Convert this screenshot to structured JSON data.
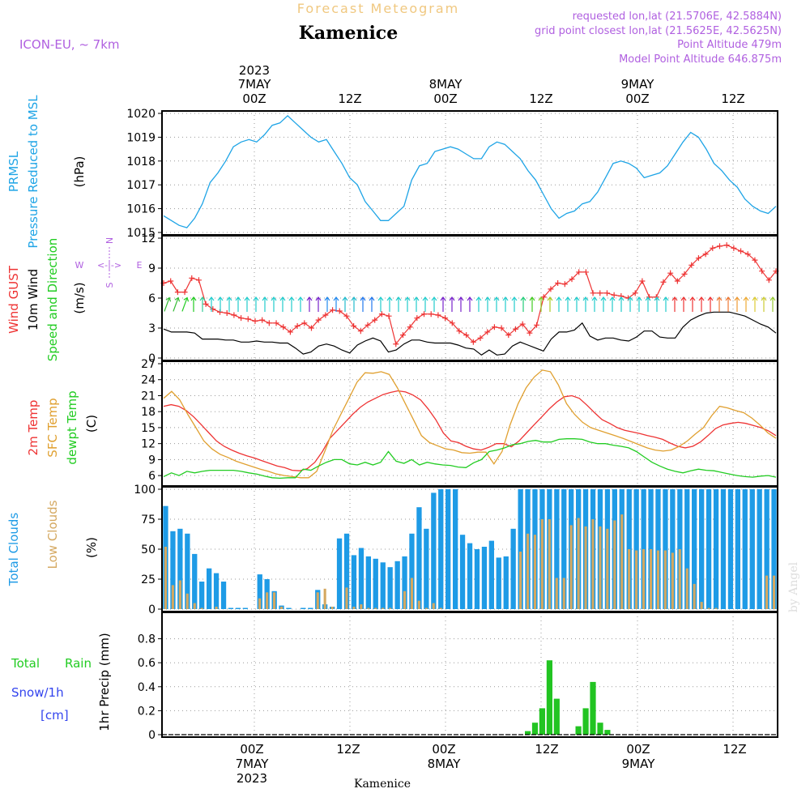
{
  "header": {
    "title": "Forecast Meteogram",
    "location": "Kamenice",
    "model": "ICON-EU, ~ 7km",
    "requested": "requested lon,lat (21.5706E, 42.5884N)",
    "gridpoint": "grid point closest lon,lat (21.5625E, 42.5625N)",
    "altitude": "Point Altitude 479m",
    "model_altitude": "Model Point Altitude 646.875m",
    "footer_location": "Kamenice",
    "credit": "by Angel"
  },
  "time_axis": {
    "top_labels": [
      {
        "time": "00Z",
        "date": "7MAY",
        "year": "2023"
      },
      {
        "time": "12Z"
      },
      {
        "time": "00Z",
        "date": "8MAY"
      },
      {
        "time": "12Z"
      },
      {
        "time": "00Z",
        "date": "9MAY"
      },
      {
        "time": "12Z"
      }
    ],
    "bottom_labels": [
      {
        "time": "00Z",
        "date": "7MAY",
        "year": "2023"
      },
      {
        "time": "12Z"
      },
      {
        "time": "00Z",
        "date": "8MAY"
      },
      {
        "time": "12Z"
      },
      {
        "time": "00Z",
        "date": "9MAY"
      },
      {
        "time": "12Z"
      }
    ]
  },
  "panel_labels": {
    "pressure": [
      "PRMSL",
      "Pressure Reduced to MSL",
      "(hPa)"
    ],
    "wind": [
      "Wind GUST",
      "10m Wind",
      "Speed and Direction",
      "(m/s)"
    ],
    "compass": {
      "n": "N",
      "s": "S",
      "e": "E",
      "w": "W",
      "arrow": "<-|->"
    },
    "temp": [
      "2m Temp",
      "SFC Temp",
      "dewpt Temp",
      "(C)"
    ],
    "clouds": [
      "Total Clouds",
      "Low Clouds",
      "(%)"
    ],
    "precip": [
      "Total",
      "Rain",
      "Snow/1h",
      "[cm]",
      "1hr Precip (mm)"
    ]
  },
  "colors": {
    "pressure": "#1ea4e6",
    "gust": "#ee3333",
    "wind": "#000000",
    "t2m": "#ee3333",
    "tsfc": "#e0a030",
    "dewpt": "#22cc22",
    "total_cloud": "#1e9be6",
    "low_cloud": "#d4a860",
    "rain": "#22c422",
    "snow": "#3344ee",
    "label_purple": "#b060e0",
    "title_orange": "#f0c880"
  },
  "chart_data": [
    {
      "type": "line",
      "name": "pressure",
      "xunit": "hours from 2023-05-06 18Z",
      "ylim": [
        1015,
        1020
      ],
      "yticks": [
        1015,
        1016,
        1017,
        1018,
        1019,
        1020
      ],
      "ylabel": "(hPa)",
      "series": [
        {
          "name": "PRMSL",
          "values": [
            1015.7,
            1015.5,
            1015.3,
            1015.2,
            1015.6,
            1016.2,
            1017.1,
            1017.5,
            1018.0,
            1018.6,
            1018.8,
            1018.9,
            1018.8,
            1019.1,
            1019.5,
            1019.6,
            1019.9,
            1019.6,
            1019.3,
            1019.0,
            1018.8,
            1018.9,
            1018.4,
            1017.9,
            1017.3,
            1017.0,
            1016.3,
            1015.9,
            1015.5,
            1015.5,
            1015.8,
            1016.1,
            1017.2,
            1017.8,
            1017.9,
            1018.4,
            1018.5,
            1018.6,
            1018.5,
            1018.3,
            1018.1,
            1018.1,
            1018.6,
            1018.8,
            1018.7,
            1018.4,
            1018.1,
            1017.6,
            1017.2,
            1016.6,
            1016.0,
            1015.6,
            1015.8,
            1015.9,
            1016.2,
            1016.3,
            1016.7,
            1017.3,
            1017.9,
            1018.0,
            1017.9,
            1017.7,
            1017.3,
            1017.4,
            1017.5,
            1017.8,
            1018.3,
            1018.8,
            1019.2,
            1019.0,
            1018.5,
            1017.9,
            1017.6,
            1017.2,
            1016.9,
            1016.4,
            1016.1,
            1015.9,
            1015.8,
            1016.1
          ]
        }
      ]
    },
    {
      "type": "line",
      "name": "wind",
      "ylim": [
        0,
        12
      ],
      "yticks": [
        0,
        3,
        6,
        9,
        12
      ],
      "ylabel": "(m/s)",
      "series": [
        {
          "name": "Wind GUST",
          "values": [
            7.5,
            7.7,
            6.6,
            6.6,
            8.0,
            7.8,
            5.4,
            4.9,
            4.6,
            4.5,
            4.3,
            4.0,
            3.9,
            3.7,
            3.8,
            3.5,
            3.5,
            3.1,
            2.6,
            3.2,
            3.5,
            3.0,
            3.8,
            4.3,
            4.8,
            4.7,
            4.2,
            3.2,
            2.7,
            3.3,
            3.8,
            4.4,
            4.2,
            1.4,
            2.3,
            3.1,
            4.0,
            4.4,
            4.4,
            4.3,
            4.0,
            3.5,
            2.7,
            2.3,
            1.6,
            2.0,
            2.6,
            3.1,
            3.0,
            2.3,
            2.9,
            3.4,
            2.5,
            3.3,
            6.1,
            6.9,
            7.5,
            7.4,
            7.9,
            8.6,
            8.6,
            6.5,
            6.5,
            6.5,
            6.3,
            6.2,
            6.0,
            6.5,
            7.7,
            6.1,
            6.1,
            7.6,
            8.5,
            7.7,
            8.4,
            9.3,
            10.0,
            10.4,
            11.0,
            11.2,
            11.3,
            11.0,
            10.7,
            10.4,
            9.8,
            8.7,
            7.8,
            8.7
          ]
        },
        {
          "name": "10m Wind",
          "values": [
            2.9,
            2.6,
            2.6,
            2.6,
            2.5,
            1.9,
            1.9,
            1.9,
            1.8,
            1.8,
            1.6,
            1.6,
            1.7,
            1.6,
            1.6,
            1.5,
            1.5,
            1.0,
            0.4,
            0.6,
            1.2,
            1.4,
            1.2,
            0.8,
            0.5,
            1.3,
            1.7,
            2.0,
            1.7,
            0.6,
            0.8,
            1.4,
            1.8,
            1.8,
            1.6,
            1.5,
            1.5,
            1.5,
            1.3,
            1.0,
            0.9,
            0.3,
            0.8,
            0.3,
            0.4,
            1.2,
            1.6,
            1.3,
            1.0,
            0.7,
            1.9,
            2.6,
            2.6,
            2.8,
            3.5,
            2.2,
            1.8,
            2.0,
            2.0,
            1.8,
            1.7,
            2.1,
            2.7,
            2.7,
            2.1,
            2.0,
            2.0,
            3.1,
            3.8,
            4.2,
            4.5,
            4.6,
            4.6,
            4.6,
            4.4,
            4.2,
            3.8,
            3.4,
            3.1,
            2.5
          ]
        }
      ],
      "arrow_colors": [
        "#33bb33",
        "#33bb33",
        "#22cc22",
        "#22cc22",
        "#33cc99",
        "#22cccc",
        "#22cccc",
        "#22cccc",
        "#22cccc",
        "#22cccc",
        "#22cccc",
        "#22cccc",
        "#22cccc",
        "#22cccc",
        "#22cccc",
        "#22cccc",
        "#7722cc",
        "#7722cc",
        "#2288ee",
        "#2288ee",
        "#22bbcc",
        "#22bbcc",
        "#2277ee",
        "#2277ee",
        "#22cccc",
        "#22cccc",
        "#22cccc",
        "#22cccc",
        "#22cccc",
        "#22cccc",
        "#22cccc",
        "#7722cc",
        "#7722cc",
        "#7722cc",
        "#7722cc",
        "#22cccc",
        "#22cccc",
        "#22cccc",
        "#22cccc",
        "#22cccc",
        "#22cc77",
        "#44cc22",
        "#88cc22",
        "#aacc22",
        "#22cccc",
        "#22cccc",
        "#22cccc",
        "#22cccc",
        "#22cccc",
        "#22cccc",
        "#22cccc",
        "#22cccc",
        "#22cccc",
        "#22cccc",
        "#22cccc",
        "#22cccc",
        "#22cccc",
        "#ee3333",
        "#ee3333",
        "#ee3333",
        "#ee3333",
        "#ee3333",
        "#ee7733",
        "#ee7733",
        "#ee9933",
        "#eeaa33",
        "#ddcc33",
        "#cccc33",
        "#99cc33"
      ]
    },
    {
      "type": "line",
      "name": "temperature",
      "ylim": [
        4.5,
        27
      ],
      "yticks": [
        6,
        9,
        12,
        15,
        18,
        21,
        24,
        27
      ],
      "ylabel": "(C)",
      "series": [
        {
          "name": "2m Temp",
          "values": [
            19.0,
            19.3,
            19.0,
            18.2,
            17.0,
            15.5,
            14.0,
            12.5,
            11.5,
            10.8,
            10.2,
            9.7,
            9.3,
            8.8,
            8.3,
            7.8,
            7.5,
            7.0,
            6.9,
            7.3,
            8.5,
            10.5,
            13.0,
            14.5,
            16.0,
            17.5,
            18.8,
            19.8,
            20.5,
            21.2,
            21.6,
            21.9,
            21.7,
            21.1,
            20.2,
            18.5,
            16.5,
            14.0,
            12.5,
            12.2,
            11.5,
            11.0,
            10.8,
            11.3,
            12.0,
            12.0,
            11.4,
            12.5,
            14.0,
            15.5,
            17.0,
            18.5,
            19.8,
            20.8,
            21.0,
            20.5,
            19.2,
            17.8,
            16.5,
            15.8,
            15.0,
            14.5,
            14.2,
            13.9,
            13.5,
            13.2,
            12.8,
            12.1,
            11.5,
            11.2,
            11.5,
            12.3,
            13.5,
            14.8,
            15.5,
            15.8,
            16.0,
            15.8,
            15.4,
            15.0,
            14.4,
            13.5
          ]
        },
        {
          "name": "SFC Temp",
          "values": [
            20.5,
            21.8,
            20.2,
            17.5,
            15.0,
            12.5,
            11.0,
            10.0,
            9.4,
            8.7,
            8.2,
            7.7,
            7.2,
            6.8,
            6.3,
            6.0,
            5.8,
            5.6,
            5.6,
            6.8,
            10.5,
            14.5,
            17.5,
            20.5,
            23.5,
            25.3,
            25.2,
            25.5,
            25.0,
            22.5,
            19.5,
            16.5,
            13.5,
            12.2,
            11.6,
            11.0,
            10.8,
            10.3,
            10.2,
            10.4,
            10.4,
            8.2,
            10.5,
            15.5,
            19.5,
            22.5,
            24.5,
            25.8,
            25.5,
            23.0,
            19.5,
            17.5,
            16.0,
            15.0,
            14.5,
            14.0,
            13.5,
            13.0,
            12.4,
            11.8,
            11.2,
            10.8,
            10.6,
            10.8,
            11.5,
            12.5,
            13.8,
            15.0,
            17.2,
            19.0,
            18.7,
            18.2,
            17.8,
            16.8,
            15.5,
            14.0,
            13.0
          ]
        },
        {
          "name": "dewpt Temp",
          "values": [
            5.8,
            6.5,
            6.0,
            6.8,
            6.5,
            6.8,
            7.0,
            7.0,
            7.0,
            7.0,
            6.8,
            6.5,
            6.3,
            5.9,
            5.6,
            5.5,
            5.6,
            5.6,
            7.2,
            7.0,
            7.8,
            8.5,
            9.0,
            9.0,
            8.2,
            8.0,
            8.5,
            8.0,
            8.5,
            10.5,
            8.7,
            8.3,
            9.0,
            8.0,
            8.5,
            8.2,
            8.0,
            7.9,
            7.6,
            7.5,
            8.4,
            9.0,
            10.5,
            10.8,
            11.2,
            11.8,
            12.0,
            12.4,
            12.6,
            12.3,
            12.3,
            12.8,
            12.9,
            12.9,
            12.8,
            12.3,
            12.0,
            12.0,
            11.7,
            11.5,
            11.2,
            10.5,
            9.5,
            8.5,
            7.8,
            7.2,
            6.8,
            6.5,
            6.9,
            7.2,
            7.0,
            6.9,
            6.6,
            6.3,
            6.0,
            5.8,
            5.7,
            5.9,
            6.0,
            5.7
          ]
        }
      ]
    },
    {
      "type": "bar",
      "name": "clouds",
      "ylim": [
        0,
        100
      ],
      "yticks": [
        0,
        25,
        50,
        75,
        100
      ],
      "ylabel": "(%)",
      "series": [
        {
          "name": "Total Clouds",
          "values": [
            86,
            65,
            67,
            63,
            46,
            23,
            34,
            30,
            23,
            1,
            1,
            1,
            0,
            29,
            25,
            15,
            3,
            1,
            0,
            1,
            1,
            16,
            4,
            2,
            59,
            63,
            45,
            51,
            44,
            42,
            39,
            35,
            40,
            44,
            63,
            85,
            67,
            97,
            100,
            100,
            100,
            62,
            55,
            50,
            52,
            57,
            43,
            44,
            67,
            100,
            100,
            100,
            100,
            100,
            100,
            100,
            100,
            100,
            100,
            100,
            100,
            100,
            100,
            100,
            100,
            100,
            100,
            100,
            100,
            100,
            100,
            100,
            100,
            100,
            100,
            100,
            100,
            100,
            100,
            100,
            100,
            100,
            100,
            100,
            100
          ]
        },
        {
          "name": "Low Clouds",
          "values": [
            52,
            20,
            24,
            13,
            5,
            1,
            0,
            2,
            0,
            0,
            0,
            0,
            0,
            9,
            14,
            14,
            2,
            0,
            0,
            0,
            0,
            14,
            17,
            2,
            0,
            18,
            2,
            4,
            1,
            1,
            1,
            1,
            0,
            15,
            26,
            7,
            1,
            5,
            1,
            0,
            0,
            0,
            0,
            0,
            0,
            0,
            0,
            0,
            0,
            48,
            63,
            62,
            75,
            75,
            26,
            26,
            70,
            76,
            69,
            75,
            69,
            67,
            74,
            79,
            50,
            49,
            50,
            50,
            49,
            49,
            47,
            50,
            34,
            21,
            6,
            1,
            1,
            0,
            0,
            0,
            0,
            0,
            0,
            28,
            28
          ]
        }
      ]
    },
    {
      "type": "bar",
      "name": "precipitation",
      "ylim": [
        0,
        1.0
      ],
      "yticks": [
        0,
        0.2,
        0.4,
        0.6,
        0.8
      ],
      "ylabel": "1hr Precip (mm)",
      "series": [
        {
          "name": "Total Rain",
          "values": [
            0,
            0,
            0,
            0,
            0,
            0,
            0,
            0,
            0,
            0,
            0,
            0,
            0,
            0,
            0,
            0,
            0,
            0,
            0,
            0,
            0,
            0,
            0,
            0,
            0,
            0,
            0,
            0,
            0,
            0,
            0,
            0,
            0,
            0,
            0,
            0,
            0,
            0,
            0,
            0,
            0,
            0,
            0,
            0,
            0,
            0,
            0,
            0,
            0,
            0,
            0.03,
            0.1,
            0.22,
            0.62,
            0.3,
            0,
            0,
            0.07,
            0.22,
            0.44,
            0.1,
            0.04,
            0,
            0,
            0,
            0,
            0,
            0,
            0,
            0,
            0,
            0,
            0,
            0,
            0,
            0,
            0,
            0,
            0,
            0,
            0,
            0,
            0,
            0,
            0
          ]
        }
      ]
    }
  ]
}
